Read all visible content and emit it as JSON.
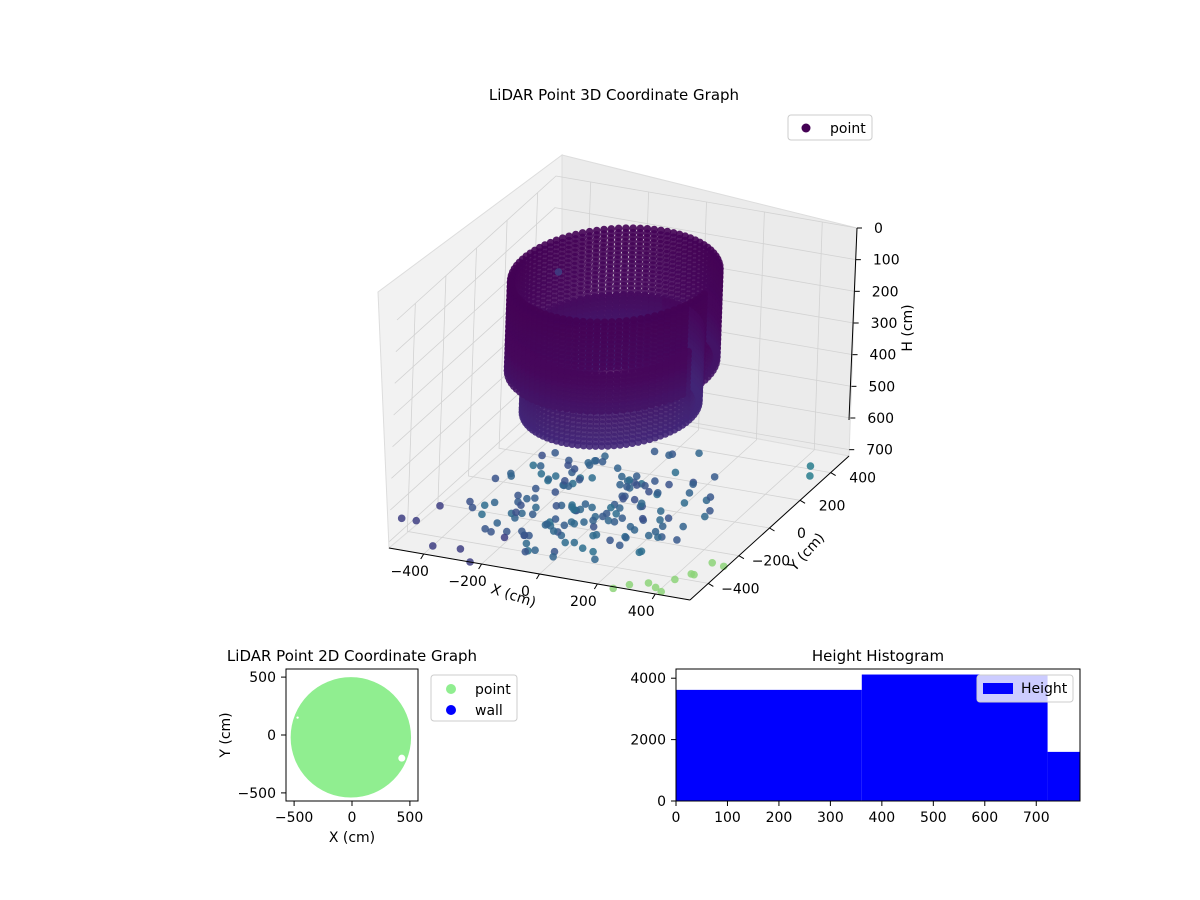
{
  "chart_data": [
    {
      "type": "scatter",
      "projection": "3d",
      "title": "LiDAR Point 3D Coordinate Graph",
      "xlabel": "X (cm)",
      "ylabel": "Y (cm)",
      "zlabel": "H (cm)",
      "x_ticks": [
        "−400",
        "−200",
        "0",
        "200",
        "400"
      ],
      "y_ticks": [
        "−400",
        "−200",
        "0",
        "200",
        "400"
      ],
      "z_ticks": [
        "0",
        "100",
        "200",
        "300",
        "400",
        "500",
        "600",
        "700"
      ],
      "xlim": [
        -520,
        520
      ],
      "ylim": [
        -520,
        520
      ],
      "zlim": [
        720,
        0
      ],
      "z_inverted": true,
      "grid": true,
      "legend": {
        "placement": "top-right",
        "entries": [
          {
            "label": "point",
            "color": "#440154"
          }
        ]
      },
      "series": [
        {
          "name": "point",
          "structure": [
            {
              "kind": "cylinder-wall",
              "radius": 320,
              "h_range": [
                0,
                280
              ],
              "color": "#46085c"
            },
            {
              "kind": "cylinder-wall",
              "radius": 270,
              "h_range": [
                190,
                420
              ],
              "color": "#3e2a78"
            },
            {
              "kind": "floor-blob",
              "h": 650,
              "color": "#3b528b"
            }
          ],
          "sample_points": [
            [
              -500,
              520,
              300
            ],
            [
              -480,
              -520,
              620
            ],
            [
              -450,
              -480,
              640
            ],
            [
              -380,
              -500,
              700
            ],
            [
              -300,
              -470,
              710
            ],
            [
              -240,
              -520,
              720
            ],
            [
              -150,
              -470,
              650
            ],
            [
              480,
              -420,
              690
            ],
            [
              430,
              -450,
              700
            ],
            [
              460,
              380,
              700
            ],
            [
              500,
              300,
              690
            ],
            [
              520,
              -300,
              710
            ],
            [
              380,
              -480,
              720
            ],
            [
              410,
              -500,
              720
            ],
            [
              260,
              -530,
              720
            ],
            [
              300,
              -500,
              715
            ],
            [
              350,
              -470,
              715
            ],
            [
              450,
              -380,
              710
            ],
            [
              480,
              -300,
              705
            ],
            [
              -350,
              -520,
              560
            ]
          ],
          "colormap": "viridis"
        }
      ]
    },
    {
      "type": "scatter",
      "title": "LiDAR Point 2D Coordinate Graph",
      "xlabel": "X (cm)",
      "ylabel": "Y (cm)",
      "x_ticks": [
        "−500",
        "0",
        "500"
      ],
      "y_ticks": [
        "−500",
        "0",
        "500"
      ],
      "xlim": [
        -570,
        570
      ],
      "ylim": [
        -570,
        570
      ],
      "legend": {
        "placement": "outside-right",
        "entries": [
          {
            "label": "point",
            "color": "#90ee90"
          },
          {
            "label": "wall",
            "color": "#0000ff"
          }
        ]
      },
      "series": [
        {
          "name": "point",
          "color": "#90ee90",
          "shape": "disc",
          "center": [
            -10,
            -20
          ],
          "radius": 520
        },
        {
          "name": "wall",
          "color": "#0000ff",
          "values": []
        }
      ]
    },
    {
      "type": "bar",
      "subtype": "histogram",
      "title": "Height Histogram",
      "x_ticks": [
        "0",
        "100",
        "200",
        "300",
        "400",
        "500",
        "600",
        "700"
      ],
      "y_ticks": [
        "0",
        "2000",
        "4000"
      ],
      "xlim": [
        0,
        785
      ],
      "ylim": [
        0,
        4300
      ],
      "legend": {
        "placement": "top-right",
        "entries": [
          {
            "label": "Height",
            "color": "#0000ff"
          }
        ]
      },
      "series": [
        {
          "name": "Height",
          "color": "#0000ff",
          "bins": [
            {
              "x0": 0,
              "x1": 361,
              "count": 3620
            },
            {
              "x0": 361,
              "x1": 722,
              "count": 4120
            },
            {
              "x0": 722,
              "x1": 785,
              "count": 1600
            }
          ]
        }
      ]
    }
  ]
}
